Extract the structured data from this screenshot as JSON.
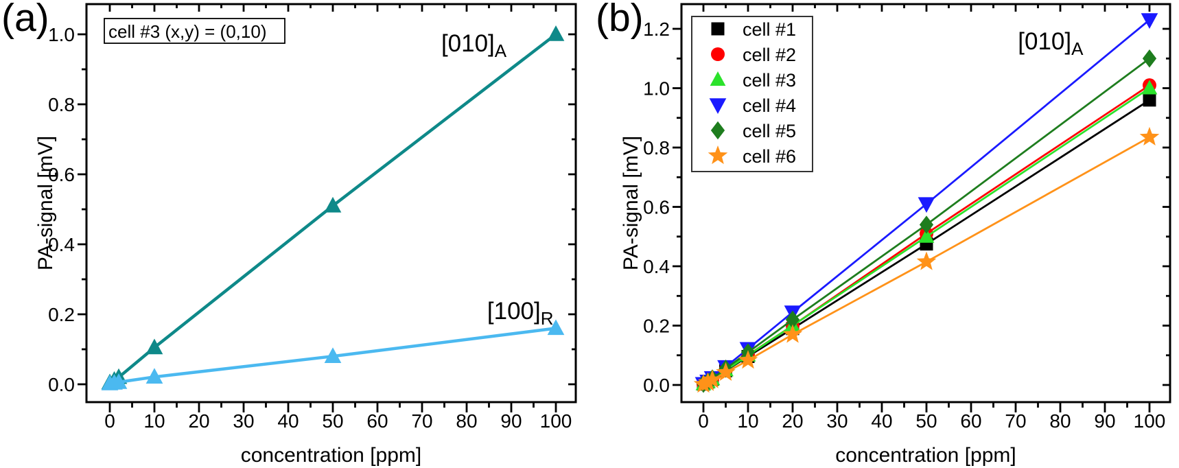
{
  "figure": {
    "background": "#ffffff",
    "panels": [
      {
        "corner_label": "(a)"
      },
      {
        "corner_label": "(b)"
      }
    ]
  },
  "chart_data": [
    {
      "type": "line",
      "panel": "a",
      "title": "",
      "xlabel": "concentration [ppm]",
      "ylabel": "PA-signal [mV]",
      "xlim": [
        -5.2,
        104.5
      ],
      "ylim": [
        -0.051,
        1.086
      ],
      "grid": false,
      "xticks": [
        0,
        10,
        20,
        30,
        40,
        50,
        60,
        70,
        80,
        90,
        100
      ],
      "xtick_labels": [
        "0",
        "10",
        "20",
        "30",
        "40",
        "50",
        "60",
        "70",
        "80",
        "90",
        "100"
      ],
      "xticks_minor": [
        5,
        15,
        25,
        35,
        45,
        55,
        65,
        75,
        85,
        95
      ],
      "yticks": [
        0.0,
        0.2,
        0.4,
        0.6,
        0.8,
        1.0
      ],
      "ytick_labels": [
        "0.0",
        "0.2",
        "0.4",
        "0.6",
        "0.8",
        "1.0"
      ],
      "yticks_minor": [
        0.1,
        0.3,
        0.5,
        0.7,
        0.9
      ],
      "annotation": {
        "text": "cell #3 (x,y) = (0,10)"
      },
      "series": [
        {
          "name": "[010]",
          "name_sub": "A",
          "color": "#0e8989",
          "marker": "triangle-up",
          "marker_size": 13,
          "line_width": 4.5,
          "x": [
            0,
            1,
            2,
            10,
            50,
            100
          ],
          "y": [
            0.005,
            0.012,
            0.02,
            0.105,
            0.51,
            1.0
          ],
          "label": {
            "x": 74.3,
            "y": 0.951
          }
        },
        {
          "name": "[100]",
          "name_sub": "R",
          "color": "#4bb9f0",
          "marker": "triangle-up",
          "marker_size": 13,
          "line_width": 4.5,
          "x": [
            0,
            1,
            2,
            10,
            50,
            100
          ],
          "y": [
            0.002,
            0.004,
            0.006,
            0.021,
            0.08,
            0.16
          ],
          "label": {
            "x": 84.6,
            "y": 0.186
          }
        }
      ]
    },
    {
      "type": "line",
      "panel": "b",
      "title": "",
      "xlabel": "concentration [ppm]",
      "ylabel": "PA-signal [mV]",
      "xlim": [
        -4.9,
        104.6
      ],
      "ylim": [
        -0.058,
        1.279
      ],
      "grid": false,
      "xticks": [
        0,
        10,
        20,
        30,
        40,
        50,
        60,
        70,
        80,
        90,
        100
      ],
      "xtick_labels": [
        "0",
        "10",
        "20",
        "30",
        "40",
        "50",
        "60",
        "70",
        "80",
        "90",
        "100"
      ],
      "xticks_minor": [
        5,
        15,
        25,
        35,
        45,
        55,
        65,
        75,
        85,
        95
      ],
      "yticks": [
        0.0,
        0.2,
        0.4,
        0.6,
        0.8,
        1.0,
        1.2
      ],
      "ytick_labels": [
        "0.0",
        "0.2",
        "0.4",
        "0.6",
        "0.8",
        "1.0",
        "1.2"
      ],
      "yticks_minor": [
        0.1,
        0.3,
        0.5,
        0.7,
        0.9,
        1.1
      ],
      "legend": {
        "show": true,
        "position": "upper-left"
      },
      "series_label": {
        "text": "[010]",
        "sub": "A",
        "x": 70.5,
        "y": 1.131,
        "color": "#000000"
      },
      "series": [
        {
          "name": "cell #1",
          "color": "#000000",
          "marker": "square",
          "x": [
            0,
            1,
            2,
            5,
            10,
            20,
            50,
            100
          ],
          "y": [
            0.003,
            0.01,
            0.019,
            0.048,
            0.096,
            0.19,
            0.475,
            0.96
          ]
        },
        {
          "name": "cell #2",
          "color": "#ff0000",
          "marker": "circle",
          "x": [
            0,
            1,
            2,
            5,
            10,
            20,
            50,
            100
          ],
          "y": [
            0.003,
            0.01,
            0.02,
            0.05,
            0.101,
            0.2,
            0.51,
            1.01
          ]
        },
        {
          "name": "cell #3",
          "color": "#2be22b",
          "marker": "triangle-up",
          "x": [
            0,
            1,
            2,
            5,
            10,
            20,
            50,
            100
          ],
          "y": [
            0.003,
            0.01,
            0.02,
            0.05,
            0.1,
            0.2,
            0.5,
            1.0
          ]
        },
        {
          "name": "cell #4",
          "color": "#1a1aff",
          "marker": "triangle-down",
          "x": [
            0,
            1,
            2,
            5,
            10,
            20,
            50,
            100
          ],
          "y": [
            0.004,
            0.012,
            0.024,
            0.061,
            0.122,
            0.245,
            0.61,
            1.23
          ]
        },
        {
          "name": "cell #5",
          "color": "#1e7d1e",
          "marker": "diamond",
          "x": [
            0,
            1,
            2,
            5,
            10,
            20,
            50,
            100
          ],
          "y": [
            0.004,
            0.011,
            0.022,
            0.055,
            0.11,
            0.22,
            0.54,
            1.1
          ]
        },
        {
          "name": "cell #6",
          "color": "#ff9219",
          "marker": "star",
          "x": [
            0,
            1,
            2,
            5,
            10,
            20,
            50,
            100
          ],
          "y": [
            0.002,
            0.008,
            0.017,
            0.042,
            0.083,
            0.17,
            0.415,
            0.835
          ]
        }
      ]
    }
  ]
}
